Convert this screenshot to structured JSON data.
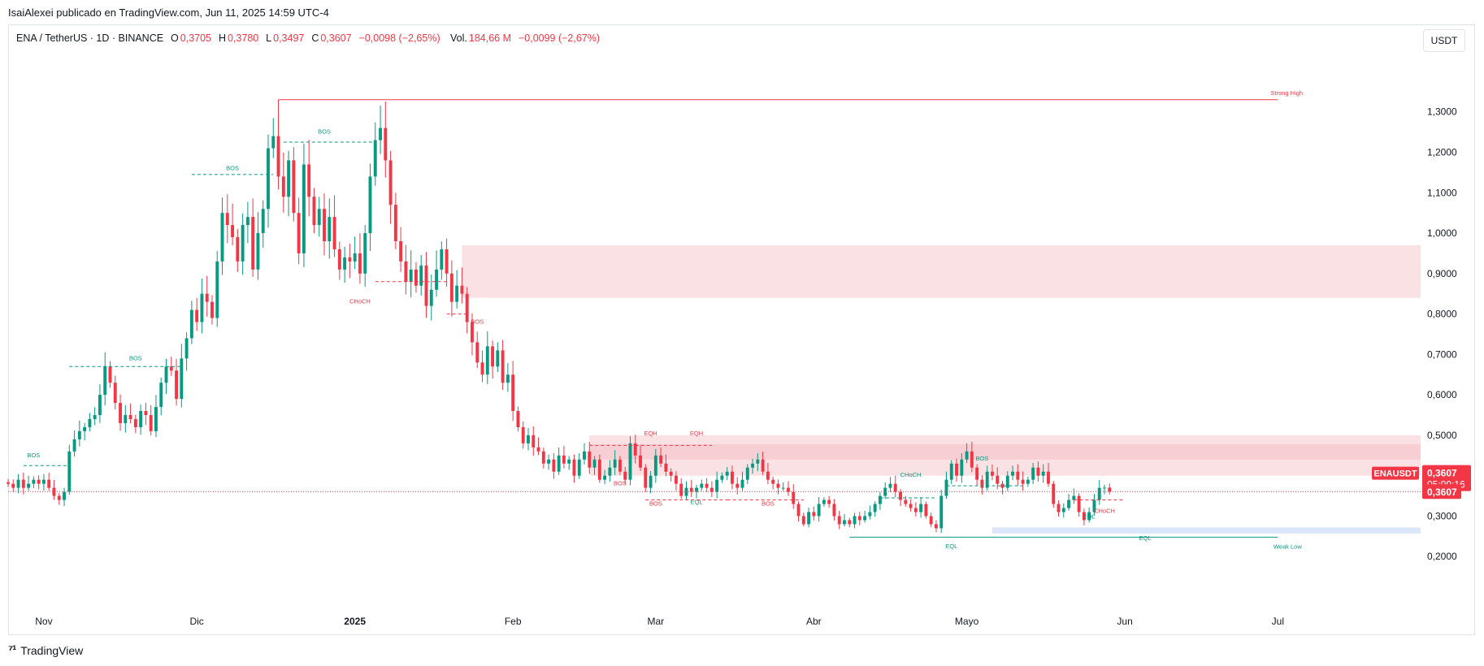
{
  "publisher": "IsaiAlexei publicado en TradingView.com, Jun 11, 2025 14:59 UTC-4",
  "legend": {
    "symbol": "ENA / TetherUS · 1D · BINANCE",
    "o_label": "O",
    "o": "0,3705",
    "h_label": "H",
    "h": "0,3780",
    "l_label": "L",
    "l": "0,3497",
    "c_label": "C",
    "c": "0,3607",
    "change": "−0,0098 (−2,65%)",
    "vol_label": "Vol.",
    "vol": "184,66 M",
    "vol_change": "−0,0099 (−2,67%)"
  },
  "currency_button": "USDT",
  "footer_brand": "TradingView",
  "colors": {
    "up": "#089981",
    "down": "#f23645",
    "zone_red": "#f8d7da",
    "zone_blue": "#dbe6fb"
  },
  "chart_data": {
    "type": "candlestick",
    "y_ticks": [
      1.3,
      1.2,
      1.1,
      1.0,
      0.9,
      0.8,
      0.7,
      0.6,
      0.5,
      0.4,
      0.3,
      0.2
    ],
    "y_tick_labels": [
      "1,3000",
      "1,2000",
      "1,1000",
      "1,0000",
      "0,9000",
      "0,8000",
      "0,7000",
      "0,6000",
      "0,5000",
      "0,4000",
      "0,3000",
      "0,2000"
    ],
    "ylim": [
      0.1,
      1.42
    ],
    "x_labels": [
      {
        "date": "2024-11-01",
        "label": "Nov",
        "bold": false
      },
      {
        "date": "2024-12-01",
        "label": "Dic",
        "bold": false
      },
      {
        "date": "2025-01-01",
        "label": "2025",
        "bold": true
      },
      {
        "date": "2025-02-01",
        "label": "Feb",
        "bold": false
      },
      {
        "date": "2025-03-01",
        "label": "Mar",
        "bold": false
      },
      {
        "date": "2025-04-01",
        "label": "Abr",
        "bold": false
      },
      {
        "date": "2025-05-01",
        "label": "Mayo",
        "bold": false
      },
      {
        "date": "2025-06-01",
        "label": "Jun",
        "bold": false
      },
      {
        "date": "2025-07-01",
        "label": "Jul",
        "bold": false
      }
    ],
    "x_range": [
      "2024-10-25",
      "2025-07-29"
    ],
    "closes": [
      0.38,
      0.37,
      0.39,
      0.37,
      0.38,
      0.39,
      0.38,
      0.39,
      0.37,
      0.35,
      0.34,
      0.36,
      0.46,
      0.49,
      0.51,
      0.52,
      0.54,
      0.55,
      0.6,
      0.67,
      0.63,
      0.58,
      0.53,
      0.55,
      0.54,
      0.52,
      0.56,
      0.55,
      0.51,
      0.57,
      0.63,
      0.67,
      0.66,
      0.59,
      0.69,
      0.74,
      0.81,
      0.78,
      0.85,
      0.83,
      0.79,
      0.93,
      1.05,
      1.02,
      0.99,
      0.93,
      1.02,
      1.04,
      0.91,
      1.0,
      1.06,
      1.21,
      1.24,
      1.14,
      1.09,
      1.18,
      1.05,
      0.95,
      1.17,
      1.09,
      1.02,
      1.06,
      0.98,
      1.04,
      0.96,
      0.91,
      0.94,
      0.93,
      0.95,
      0.9,
      1.0,
      1.14,
      1.23,
      1.26,
      1.18,
      1.07,
      0.98,
      0.93,
      0.88,
      0.91,
      0.87,
      0.92,
      0.82,
      0.86,
      0.91,
      0.96,
      0.9,
      0.83,
      0.87,
      0.85,
      0.78,
      0.73,
      0.68,
      0.65,
      0.72,
      0.67,
      0.71,
      0.63,
      0.65,
      0.56,
      0.52,
      0.48,
      0.5,
      0.47,
      0.46,
      0.43,
      0.44,
      0.41,
      0.45,
      0.43,
      0.44,
      0.4,
      0.44,
      0.46,
      0.42,
      0.44,
      0.39,
      0.4,
      0.42,
      0.44,
      0.41,
      0.39,
      0.48,
      0.45,
      0.42,
      0.37,
      0.4,
      0.45,
      0.43,
      0.41,
      0.4,
      0.38,
      0.35,
      0.37,
      0.36,
      0.37,
      0.38,
      0.37,
      0.36,
      0.39,
      0.4,
      0.41,
      0.38,
      0.37,
      0.39,
      0.42,
      0.43,
      0.44,
      0.41,
      0.39,
      0.38,
      0.37,
      0.37,
      0.36,
      0.33,
      0.3,
      0.28,
      0.31,
      0.3,
      0.33,
      0.34,
      0.33,
      0.3,
      0.28,
      0.29,
      0.28,
      0.3,
      0.29,
      0.3,
      0.31,
      0.33,
      0.35,
      0.37,
      0.38,
      0.36,
      0.34,
      0.33,
      0.32,
      0.31,
      0.33,
      0.3,
      0.28,
      0.27,
      0.35,
      0.39,
      0.43,
      0.4,
      0.44,
      0.46,
      0.42,
      0.39,
      0.37,
      0.41,
      0.4,
      0.38,
      0.37,
      0.4,
      0.41,
      0.39,
      0.38,
      0.39,
      0.42,
      0.4,
      0.41,
      0.38,
      0.33,
      0.31,
      0.32,
      0.34,
      0.35,
      0.31,
      0.29,
      0.31,
      0.34,
      0.37,
      0.3705,
      0.3607
    ],
    "last_price_label": "0,3607",
    "countdown": "05:00:16",
    "symbol_tag": "ENAUSDT",
    "annotations": [
      {
        "text": "Strong High",
        "kind": "down"
      },
      {
        "text": "Weak Low",
        "kind": "up"
      },
      {
        "text": "BOS",
        "kind": "up"
      },
      {
        "text": "BOS",
        "kind": "up"
      },
      {
        "text": "BOS",
        "kind": "up"
      },
      {
        "text": "BOS",
        "kind": "up"
      },
      {
        "text": "CHoCH",
        "kind": "down"
      },
      {
        "text": "BOS",
        "kind": "down"
      },
      {
        "text": "BOS",
        "kind": "down"
      },
      {
        "text": "BOS",
        "kind": "down"
      },
      {
        "text": "BOS",
        "kind": "down"
      },
      {
        "text": "EQH",
        "kind": "down"
      },
      {
        "text": "EQH",
        "kind": "down"
      },
      {
        "text": "EQL",
        "kind": "up"
      },
      {
        "text": "EQL",
        "kind": "up"
      },
      {
        "text": "EQL",
        "kind": "up"
      },
      {
        "text": "EQL",
        "kind": "up"
      },
      {
        "text": "CHoCH",
        "kind": "up"
      },
      {
        "text": "BOS",
        "kind": "up"
      },
      {
        "text": "CHoCH",
        "kind": "down"
      }
    ],
    "levels": {
      "strong_high": 1.33,
      "weak_low": 0.248,
      "supply_zone_upper": [
        0.84,
        0.97
      ],
      "supply_zone_lower": [
        0.4,
        0.5
      ],
      "demand_zone": [
        0.257,
        0.272
      ]
    },
    "grid": false
  }
}
